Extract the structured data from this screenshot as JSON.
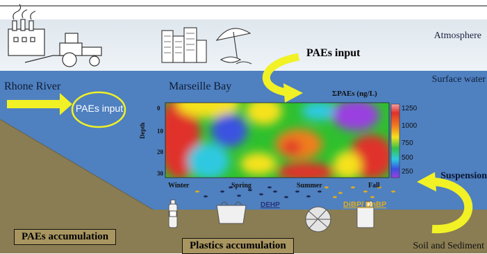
{
  "labels": {
    "atmosphere": "Atmosphere",
    "surface_water": "Surface water",
    "rhone_river": "Rhone River",
    "marseille_bay": "Marseille Bay",
    "paes_input": "PAEs input",
    "ellipse_paes_input": "PAEs input",
    "suspension": "Suspension",
    "soil_sediment": "Soil and Sediment",
    "paes_accumulation": "PAEs accumulation",
    "plastics_accumulation": "Plastics accumulation",
    "dehp": "DEHP",
    "dibp_dnbp": "DiBP/ DnBP"
  },
  "heatmap": {
    "colorbar_title": "ΣPAEs (ng/L)",
    "colorbar_ticks": [
      "1250",
      "1000",
      "750",
      "500",
      "250"
    ],
    "y_title": "Depth",
    "y_ticks": [
      "0",
      "10",
      "20",
      "30"
    ],
    "x_ticks": [
      "Winter",
      "Spring",
      "Summer",
      "Fall"
    ]
  },
  "colors": {
    "sky": "#e6edf3",
    "water": "#4f80c0",
    "sediment": "#8a7d53",
    "arrow": "#f1f126",
    "box": "#a89560"
  },
  "icons": [
    "factory-icon",
    "tractor-icon",
    "city-buildings-icon",
    "beach-umbrella-icon",
    "water-bottle-icon",
    "plastic-bag-icon",
    "fishing-net-icon",
    "plastic-container-icon"
  ]
}
